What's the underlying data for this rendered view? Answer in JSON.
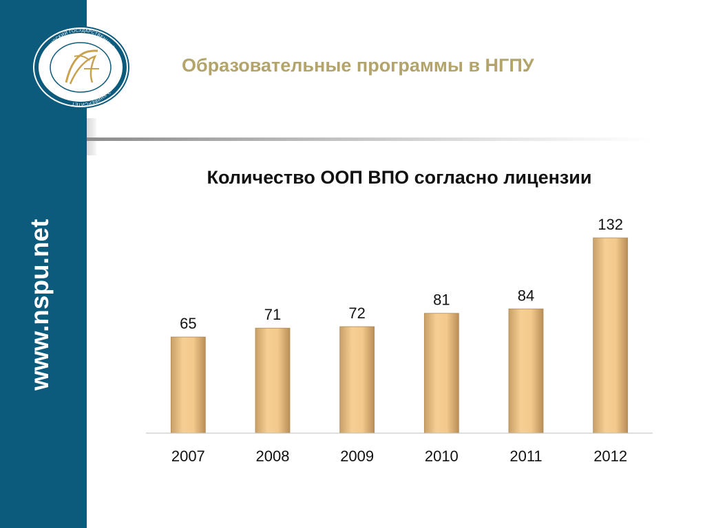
{
  "slide": {
    "title": "Образовательные программы в НГПУ",
    "side_url": "www.nspu.net"
  },
  "logo": {
    "icon": "university-seal-icon",
    "ring_text": "НОВОСИБИРСКИЙ ГОСУДАРСТВЕННЫЙ ПЕДАГОГИЧЕСКИЙ УНИВЕРСИТЕТ"
  },
  "colors": {
    "sidebar": "#0c5a7c",
    "title": "#b2a46a",
    "bar_light": "#f6cf95",
    "bar_dark": "#c8a067"
  },
  "chart_data": {
    "type": "bar",
    "title": "Количество ООП ВПО согласно лицензии",
    "categories": [
      "2007",
      "2008",
      "2009",
      "2010",
      "2011",
      "2012"
    ],
    "values": [
      65,
      71,
      72,
      81,
      84,
      132
    ],
    "xlabel": "",
    "ylabel": "",
    "ylim": [
      0,
      132
    ],
    "grid": false,
    "legend": "none",
    "data_labels": true
  }
}
